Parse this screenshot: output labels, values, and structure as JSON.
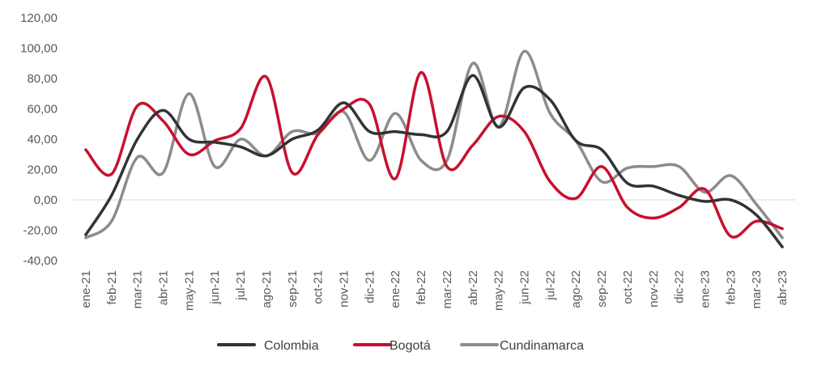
{
  "chart_data": {
    "type": "line",
    "title": "",
    "xlabel": "",
    "ylabel": "",
    "ylim": [
      -40,
      120
    ],
    "yticks": [
      "-40,00",
      "-20,00",
      "0,00",
      "20,00",
      "40,00",
      "60,00",
      "80,00",
      "100,00",
      "120,00"
    ],
    "grid": false,
    "legend_position": "bottom",
    "categories": [
      "ene-21",
      "feb-21",
      "mar-21",
      "abr-21",
      "may-21",
      "jun-21",
      "jul-21",
      "ago-21",
      "sep-21",
      "oct-21",
      "nov-21",
      "dic-21",
      "ene-22",
      "feb-22",
      "mar-22",
      "abr-22",
      "may-22",
      "jun-22",
      "jul-22",
      "ago-22",
      "sep-22",
      "oct-22",
      "nov-22",
      "dic-22",
      "ene-23",
      "feb-23",
      "mar-23",
      "abr-23"
    ],
    "series": [
      {
        "name": "Colombia",
        "color": "#333333",
        "values": [
          -23,
          3,
          40,
          59,
          40,
          38,
          35,
          29,
          40,
          46,
          64,
          45,
          45,
          43,
          45,
          82,
          48,
          74,
          66,
          39,
          33,
          11,
          9,
          3,
          -1,
          0,
          -10,
          -31
        ]
      },
      {
        "name": "Bogotá",
        "color": "#C8102E",
        "values": [
          33,
          17,
          62,
          52,
          30,
          39,
          47,
          81,
          18,
          43,
          60,
          63,
          14,
          84,
          22,
          36,
          55,
          45,
          12,
          1,
          22,
          -5,
          -12,
          -5,
          7,
          -24,
          -14,
          -19
        ]
      },
      {
        "name": "Cundinamarca",
        "color": "#8C8C8C",
        "values": [
          -25,
          -14,
          28,
          18,
          70,
          22,
          40,
          29,
          45,
          44,
          58,
          26,
          57,
          26,
          26,
          90,
          48,
          98,
          57,
          39,
          12,
          21,
          22,
          22,
          5,
          16,
          -3,
          -25
        ]
      }
    ]
  }
}
